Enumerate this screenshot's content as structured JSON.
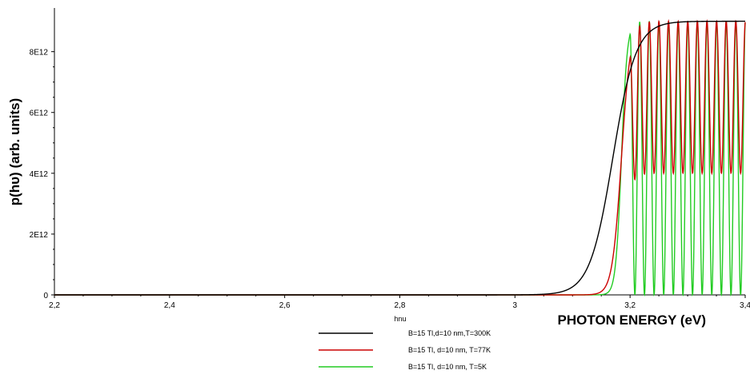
{
  "chart_data": {
    "type": "line",
    "title": "",
    "ylabel": "p(hυ) (arb. units)",
    "xlabel": "PHOTON ENERGY (eV)",
    "x_var_label": "hnu",
    "xlim": [
      2.2,
      3.4
    ],
    "ylim": [
      0,
      9200000000000.0
    ],
    "x_ticks": [
      2.2,
      2.4,
      2.6,
      2.8,
      3.0,
      3.2,
      3.4
    ],
    "x_tick_labels": [
      "2,2",
      "2,4",
      "2,6",
      "2,8",
      "3",
      "3,2",
      "3,4"
    ],
    "y_ticks": [
      0,
      2000000000000.0,
      4000000000000.0,
      6000000000000.0,
      8000000000000.0
    ],
    "y_tick_labels": [
      "0",
      "2E12",
      "4E12",
      "6E12",
      "8E12"
    ],
    "grid": false,
    "legend_position": "bottom-center",
    "series": [
      {
        "name": "B=15 Tl,d=10 nm,T=300K",
        "color": "#000000",
        "description_model": {
          "onset": 3.17,
          "width": 0.02,
          "max": 9000000000000.0,
          "min": 0,
          "oscillation": false
        }
      },
      {
        "name": "B=15 Tl, d=10 nm, T=77K",
        "color": "#cc0000",
        "description_model": {
          "onset": 3.185,
          "width": 0.008,
          "max": 9000000000000.0,
          "min": 4000000000000.0,
          "oscillation": true,
          "period": 0.0167,
          "first_peak": 3.2
        }
      },
      {
        "name": "B=15 Tl, d=10 nm, T=5K",
        "color": "#22cc22",
        "description_model": {
          "onset": 3.185,
          "width": 0.005,
          "max": 9000000000000.0,
          "min": 0,
          "oscillation": true,
          "period": 0.0167,
          "first_peak": 3.2
        }
      }
    ]
  }
}
